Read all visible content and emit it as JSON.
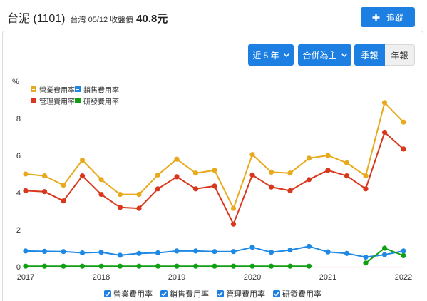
{
  "theme": {
    "accent": "#1e7fe2"
  },
  "icons": {
    "follow": "plus-icon",
    "dropdown": "chevron-down-icon",
    "legend_toggle": "check-icon"
  },
  "header": {
    "title": "台泥 (1101)",
    "subtitle": "台灣 05/12 收盤價",
    "price": "40.8元",
    "follow_label": "追蹤"
  },
  "controls": {
    "period": "近 5 年",
    "basis": "合併為主",
    "quarterly": "季報",
    "annual": "年報"
  },
  "chart_data": {
    "type": "line",
    "ylabel": "%",
    "xlim": [
      2017,
      2022
    ],
    "ylim": [
      0,
      9.5
    ],
    "x_ticks": [
      2017,
      2018,
      2019,
      2020,
      2021,
      2022
    ],
    "y_ticks": [
      0,
      2,
      4,
      6,
      8
    ],
    "grid": false,
    "legend": "top-left",
    "x": [
      2017,
      2017.25,
      2017.5,
      2017.75,
      2018,
      2018.25,
      2018.5,
      2018.75,
      2019,
      2019.25,
      2019.5,
      2019.75,
      2020,
      2020.25,
      2020.5,
      2020.75,
      2021,
      2021.25,
      2021.5,
      2021.75,
      2022
    ],
    "series": [
      {
        "name": "營業費用率",
        "color": "#e8a91d",
        "values": [
          5.0,
          4.9,
          4.4,
          5.75,
          4.7,
          3.9,
          3.9,
          4.95,
          5.8,
          5.05,
          5.2,
          3.15,
          6.05,
          5.1,
          5.05,
          5.85,
          6.0,
          5.6,
          4.9,
          8.85,
          7.8
        ]
      },
      {
        "name": "銷售費用率",
        "color": "#1e88e5",
        "values": [
          0.85,
          0.83,
          0.82,
          0.75,
          0.78,
          0.62,
          0.72,
          0.75,
          0.85,
          0.85,
          0.82,
          0.82,
          1.05,
          0.78,
          0.9,
          1.1,
          0.8,
          0.72,
          0.52,
          0.65,
          0.85
        ]
      },
      {
        "name": "管理費用率",
        "color": "#d9371c",
        "values": [
          4.1,
          4.05,
          3.55,
          4.9,
          3.9,
          3.2,
          3.15,
          4.2,
          4.85,
          4.2,
          4.35,
          2.3,
          4.95,
          4.3,
          4.1,
          4.7,
          5.2,
          4.9,
          4.2,
          7.25,
          6.35
        ]
      },
      {
        "name": "研發費用率",
        "color": "#11a014",
        "values": [
          0.03,
          0.03,
          0.03,
          0.03,
          0.03,
          0.03,
          0.03,
          0.03,
          0.03,
          0.03,
          0.03,
          0.03,
          0.03,
          0.03,
          0.03,
          0.03,
          null,
          null,
          0.2,
          1.0,
          0.6
        ]
      }
    ]
  }
}
